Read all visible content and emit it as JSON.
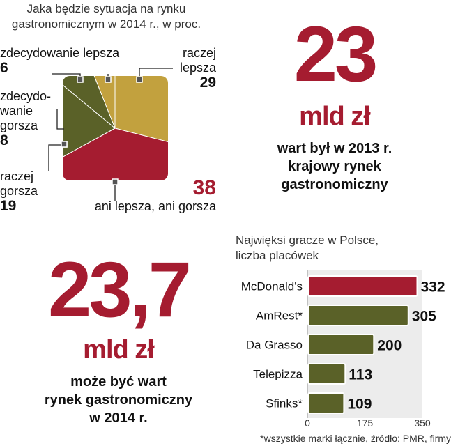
{
  "pie": {
    "title_lines": [
      "Jaka będzie sytuacja na rynku",
      "gastronomicznym w 2014 r., w proc."
    ]
  },
  "stat_2013": {
    "value": "23",
    "unit": "mld zł",
    "desc_lines": [
      "wart był w 2013 r.",
      "krajowy rynek",
      "gastronomiczny"
    ]
  },
  "stat_2014": {
    "value": "23,7",
    "unit": "mld zł",
    "desc_lines": [
      "może być wart",
      "rynek gastronomiczny",
      "w 2014 r."
    ]
  },
  "bar": {
    "title_lines": [
      "Najwięksi gracze w Polsce,",
      "liczba placówek"
    ],
    "footnote": "*wszystkie marki łącznie, źródło: PMR, firmy"
  },
  "colors": {
    "red": "#a51c30",
    "olive": "#5a6128",
    "gold": "#c2a13e",
    "axis_bg": "#ececec"
  },
  "chart_data": [
    {
      "type": "pie",
      "title": "Jaka będzie sytuacja na rynku gastronomicznym w 2014 r., w proc.",
      "slices": [
        {
          "label": "raczej lepsza",
          "value": 29,
          "color": "#c2a13e",
          "label_parts": [
            "raczej",
            "lepsza"
          ]
        },
        {
          "label": "ani lepsza, ani gorsza",
          "value": 38,
          "color": "#a51c30",
          "label_parts": [
            "ani lepsza, ani gorsza"
          ]
        },
        {
          "label": "raczej gorsza",
          "value": 19,
          "color": "#5a6128",
          "label_parts": [
            "raczej",
            "gorsza"
          ]
        },
        {
          "label": "zdecydowanie gorsza",
          "value": 8,
          "color": "#5a6128",
          "label_parts": [
            "zdecydo-",
            "wanie",
            "gorsza"
          ]
        },
        {
          "label": "zdecydowanie lepsza",
          "value": 6,
          "color": "#c2a13e",
          "label_parts": [
            "zdecydowanie lepsza"
          ]
        }
      ]
    },
    {
      "type": "bar",
      "orientation": "horizontal",
      "title": "Najwięksi gracze w Polsce, liczba placówek",
      "categories": [
        "McDonald's",
        "AmRest*",
        "Da Grasso",
        "Telepizza",
        "Sfinks*"
      ],
      "values": [
        332,
        305,
        200,
        113,
        109
      ],
      "colors": [
        "#a51c30",
        "#5a6128",
        "#5a6128",
        "#5a6128",
        "#5a6128"
      ],
      "xlim": [
        0,
        350
      ],
      "xticks": [
        0,
        175,
        350
      ]
    }
  ]
}
